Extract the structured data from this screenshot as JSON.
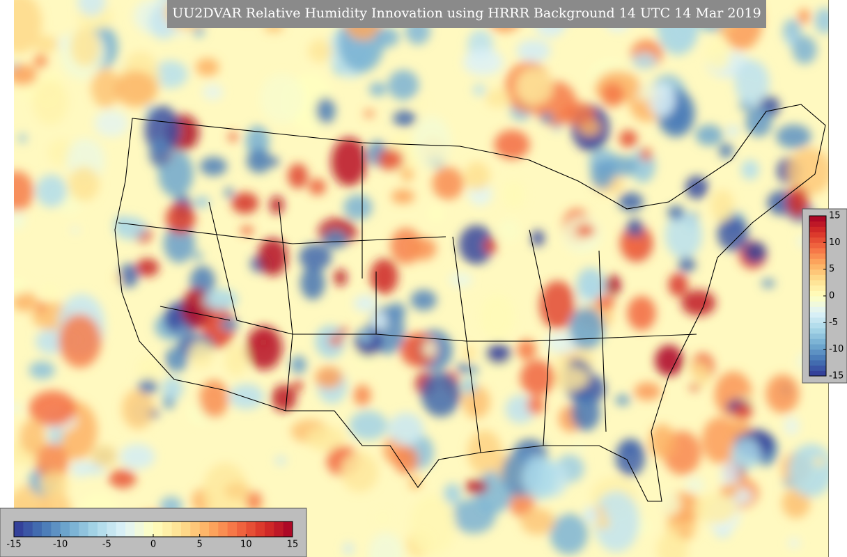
{
  "title": "UU2DVAR Relative Humidity Innovation using HRRR Background 14 UTC 14 Mar 2019",
  "colormap": [
    "#313695",
    "#4575b4",
    "#74add1",
    "#abd9e9",
    "#e0f3f8",
    "#ffffbf",
    "#fee090",
    "#fdae61",
    "#f46d43",
    "#d73027",
    "#a50026"
  ],
  "colorbars": [
    {
      "orientation": "horizontal",
      "lim": [
        -15,
        15
      ],
      "ticks": [
        -15,
        -10,
        -5,
        0,
        5,
        10,
        15
      ]
    },
    {
      "orientation": "vertical",
      "lim": [
        -15,
        15
      ],
      "ticks": [
        -15,
        -10,
        -5,
        0,
        5,
        10,
        15
      ]
    }
  ]
}
